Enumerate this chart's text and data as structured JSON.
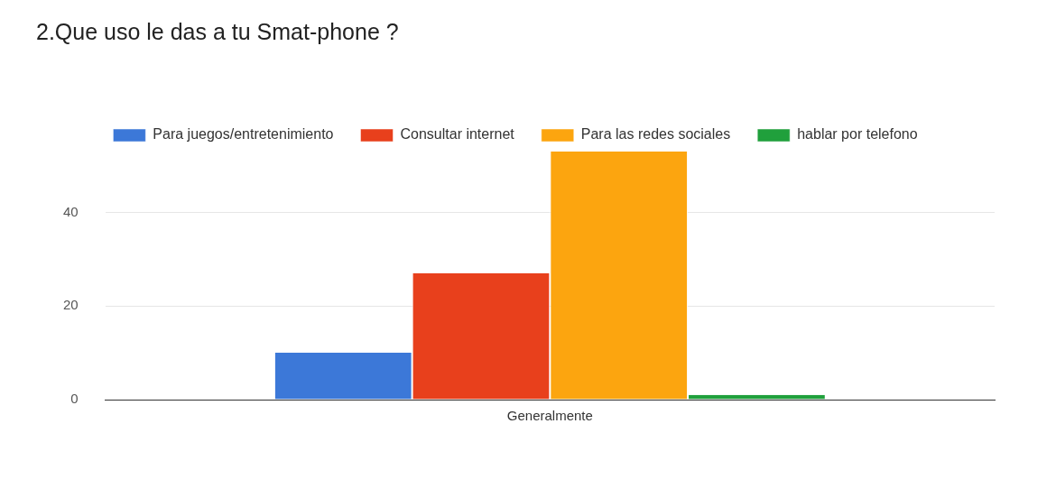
{
  "chart_data": {
    "type": "bar",
    "title": "2.Que uso le das a tu Smat-phone ?",
    "categories": [
      "Generalmente"
    ],
    "series": [
      {
        "name": "Para juegos/entretenimiento",
        "color": "#3c78d8",
        "values": [
          10
        ]
      },
      {
        "name": "Consultar internet",
        "color": "#e8401c",
        "values": [
          27
        ]
      },
      {
        "name": "Para las redes sociales",
        "color": "#fca50f",
        "values": [
          53
        ]
      },
      {
        "name": "hablar por telefono",
        "color": "#20a03c",
        "values": [
          1
        ]
      }
    ],
    "ylim": [
      0,
      53
    ],
    "yticks": [
      0,
      20,
      40
    ],
    "grid": "y",
    "legend": "top"
  }
}
